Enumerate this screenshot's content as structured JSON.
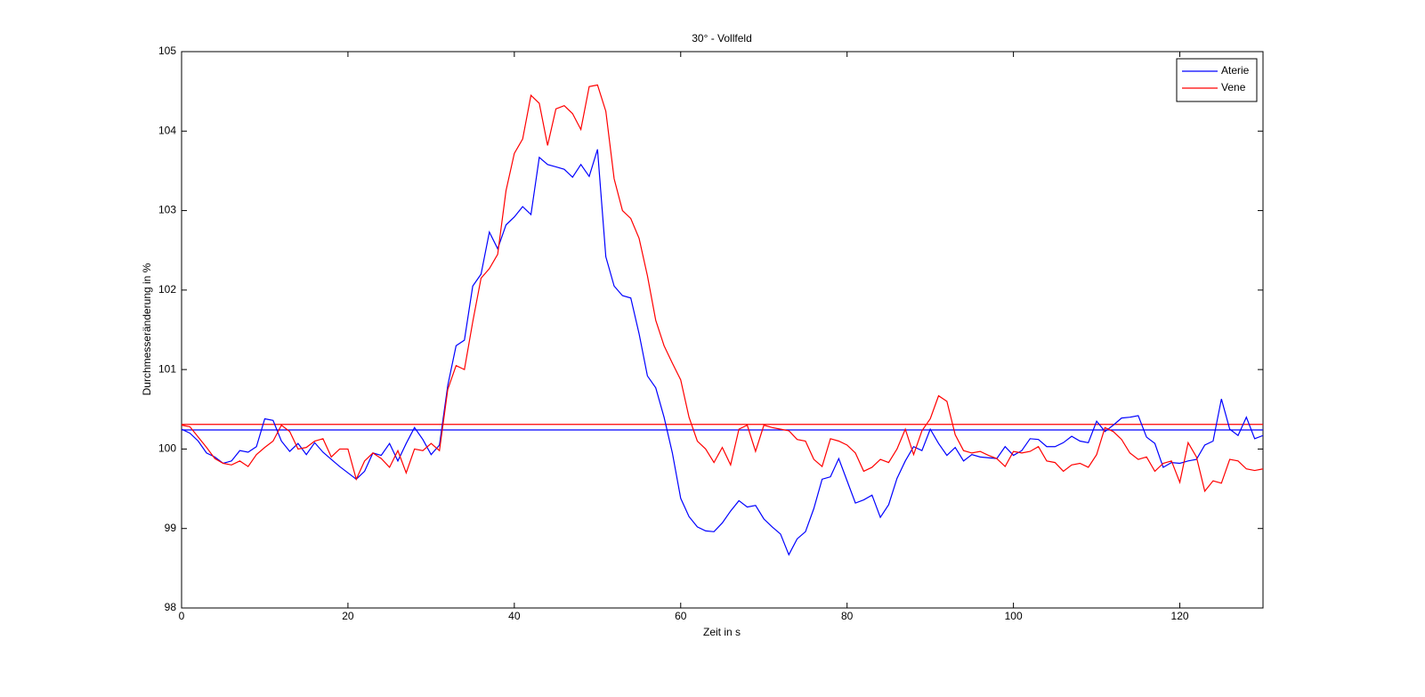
{
  "chart_data": {
    "type": "line",
    "title": "30° - Vollfeld",
    "xlabel": "Zeit in s",
    "ylabel": "Durchmesseränderung in %",
    "x": [
      0,
      1,
      2,
      3,
      4,
      5,
      6,
      7,
      8,
      9,
      10,
      11,
      12,
      13,
      14,
      15,
      16,
      17,
      18,
      19,
      20,
      21,
      22,
      23,
      24,
      25,
      26,
      27,
      28,
      29,
      30,
      31,
      32,
      33,
      34,
      35,
      36,
      37,
      38,
      39,
      40,
      41,
      42,
      43,
      44,
      45,
      46,
      47,
      48,
      49,
      50,
      51,
      52,
      53,
      54,
      55,
      56,
      57,
      58,
      59,
      60,
      61,
      62,
      63,
      64,
      65,
      66,
      67,
      68,
      69,
      70,
      71,
      72,
      73,
      74,
      75,
      76,
      77,
      78,
      79,
      80,
      81,
      82,
      83,
      84,
      85,
      86,
      87,
      88,
      89,
      90,
      91,
      92,
      93,
      94,
      95,
      96,
      97,
      98,
      99,
      100,
      101,
      102,
      103,
      104,
      105,
      106,
      107,
      108,
      109,
      110,
      111,
      112,
      113,
      114,
      115,
      116,
      117,
      118,
      119,
      120,
      121,
      122,
      123,
      124,
      125,
      126,
      127,
      128,
      129,
      130
    ],
    "series": [
      {
        "name": "Aterie",
        "color": "#0000ff",
        "values": [
          100.25,
          100.2,
          100.1,
          99.95,
          99.9,
          99.82,
          99.85,
          99.98,
          99.96,
          100.03,
          100.38,
          100.36,
          100.1,
          99.97,
          100.07,
          99.93,
          100.08,
          99.96,
          99.87,
          99.78,
          99.7,
          99.62,
          99.72,
          99.95,
          99.92,
          100.07,
          99.85,
          100.07,
          100.27,
          100.12,
          99.93,
          100.05,
          100.8,
          101.3,
          101.37,
          102.05,
          102.2,
          102.73,
          102.52,
          102.82,
          102.92,
          103.05,
          102.95,
          103.67,
          103.58,
          103.55,
          103.52,
          103.42,
          103.58,
          103.43,
          103.77,
          102.42,
          102.05,
          101.93,
          101.9,
          101.45,
          100.92,
          100.77,
          100.4,
          99.95,
          99.38,
          99.15,
          99.02,
          98.97,
          98.96,
          99.07,
          99.22,
          99.35,
          99.27,
          99.29,
          99.12,
          99.02,
          98.93,
          98.67,
          98.87,
          98.96,
          99.25,
          99.62,
          99.65,
          99.88,
          99.6,
          99.32,
          99.36,
          99.42,
          99.14,
          99.3,
          99.63,
          99.85,
          100.03,
          99.98,
          100.25,
          100.07,
          99.92,
          100.02,
          99.85,
          99.93,
          99.9,
          99.89,
          99.88,
          100.03,
          99.92,
          99.98,
          100.13,
          100.12,
          100.03,
          100.03,
          100.08,
          100.16,
          100.1,
          100.08,
          100.35,
          100.22,
          100.3,
          100.39,
          100.4,
          100.42,
          100.15,
          100.07,
          99.77,
          99.83,
          99.82,
          99.85,
          99.87,
          100.05,
          100.1,
          100.63,
          100.25,
          100.17,
          100.4,
          100.13,
          100.17
        ]
      },
      {
        "name": "Vene",
        "color": "#ff0000",
        "values": [
          100.3,
          100.28,
          100.15,
          100.02,
          99.88,
          99.82,
          99.8,
          99.85,
          99.78,
          99.93,
          100.02,
          100.1,
          100.3,
          100.22,
          100.0,
          100.02,
          100.1,
          100.13,
          99.9,
          100.0,
          100.0,
          99.62,
          99.85,
          99.95,
          99.88,
          99.77,
          99.98,
          99.7,
          100.0,
          99.98,
          100.07,
          99.98,
          100.75,
          101.05,
          101.0,
          101.6,
          102.15,
          102.27,
          102.45,
          103.25,
          103.72,
          103.9,
          104.45,
          104.35,
          103.82,
          104.28,
          104.32,
          104.22,
          104.02,
          104.56,
          104.58,
          104.25,
          103.4,
          103.0,
          102.9,
          102.65,
          102.18,
          101.62,
          101.3,
          101.08,
          100.87,
          100.4,
          100.1,
          100.0,
          99.83,
          100.02,
          99.8,
          100.25,
          100.3,
          99.97,
          100.3,
          100.27,
          100.25,
          100.23,
          100.12,
          100.1,
          99.87,
          99.78,
          100.13,
          100.1,
          100.05,
          99.95,
          99.72,
          99.77,
          99.87,
          99.83,
          100.0,
          100.25,
          99.93,
          100.23,
          100.38,
          100.67,
          100.6,
          100.18,
          99.98,
          99.95,
          99.97,
          99.92,
          99.88,
          99.78,
          99.97,
          99.95,
          99.97,
          100.03,
          99.85,
          99.83,
          99.72,
          99.8,
          99.82,
          99.77,
          99.93,
          100.27,
          100.22,
          100.12,
          99.95,
          99.87,
          99.9,
          99.72,
          99.82,
          99.85,
          99.58,
          100.08,
          99.9,
          99.47,
          99.6,
          99.57,
          99.87,
          99.85,
          99.75,
          99.73,
          99.75
        ]
      }
    ],
    "hlines": [
      {
        "value": 100.31,
        "color": "#ff0000"
      },
      {
        "value": 100.24,
        "color": "#0000ff"
      }
    ],
    "xlim": [
      0,
      130
    ],
    "xticks": [
      0,
      20,
      40,
      60,
      80,
      100,
      120
    ],
    "ylim": [
      98,
      105
    ],
    "yticks": [
      98,
      99,
      100,
      101,
      102,
      103,
      104,
      105
    ],
    "legend": "upper right"
  }
}
